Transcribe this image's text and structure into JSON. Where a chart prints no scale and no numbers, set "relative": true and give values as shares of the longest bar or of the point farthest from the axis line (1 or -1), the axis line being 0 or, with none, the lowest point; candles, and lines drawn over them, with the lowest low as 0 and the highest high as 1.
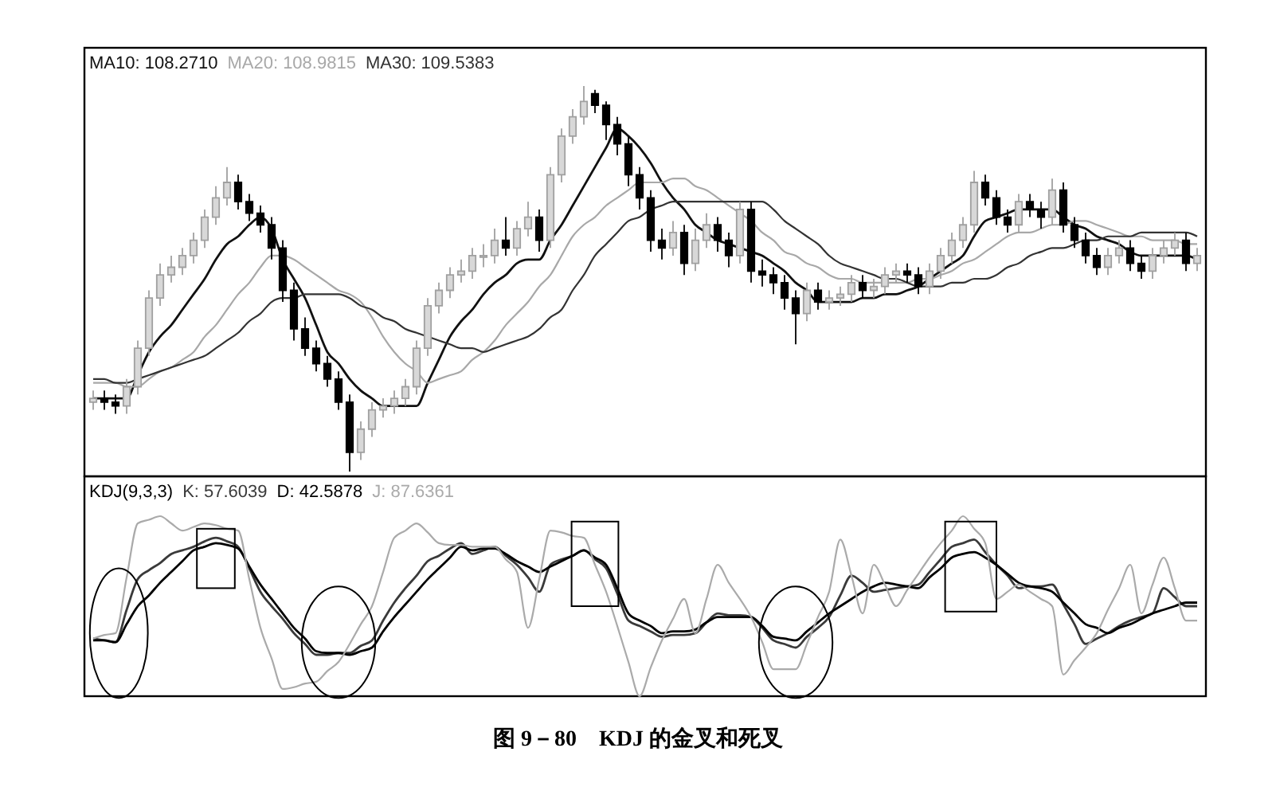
{
  "chart_data": [
    {
      "type": "candlestick",
      "relative": true,
      "categories": [
        null,
        null,
        null,
        null,
        null,
        null,
        null,
        null,
        null,
        null,
        null,
        null,
        null,
        null,
        null,
        null,
        null,
        null,
        null,
        null,
        null,
        null,
        null,
        null,
        null,
        null,
        null,
        null,
        null,
        null,
        null,
        null,
        null,
        null,
        null,
        null,
        null,
        null,
        null,
        null,
        null,
        null,
        null,
        null,
        null,
        null,
        null,
        null,
        null,
        null,
        null,
        null,
        null,
        null,
        null,
        null,
        null,
        null,
        null,
        null,
        null,
        null,
        null,
        null,
        null,
        null,
        null,
        null,
        null,
        null,
        null,
        null,
        null,
        null,
        null,
        null,
        null,
        null,
        null,
        null,
        null,
        null,
        null,
        null,
        null,
        null,
        null,
        null,
        null,
        null,
        null,
        null,
        null,
        null,
        null,
        null,
        null,
        null,
        null,
        null
      ],
      "ohlc": [
        [
          0.18,
          0.21,
          0.16,
          0.19
        ],
        [
          0.19,
          0.21,
          0.16,
          0.18
        ],
        [
          0.18,
          0.2,
          0.15,
          0.17
        ],
        [
          0.17,
          0.24,
          0.15,
          0.22
        ],
        [
          0.22,
          0.34,
          0.2,
          0.32
        ],
        [
          0.32,
          0.47,
          0.3,
          0.45
        ],
        [
          0.45,
          0.54,
          0.43,
          0.51
        ],
        [
          0.51,
          0.56,
          0.49,
          0.53
        ],
        [
          0.53,
          0.58,
          0.51,
          0.56
        ],
        [
          0.56,
          0.62,
          0.54,
          0.6
        ],
        [
          0.6,
          0.68,
          0.58,
          0.66
        ],
        [
          0.66,
          0.74,
          0.64,
          0.71
        ],
        [
          0.71,
          0.79,
          0.69,
          0.75
        ],
        [
          0.75,
          0.77,
          0.68,
          0.7
        ],
        [
          0.7,
          0.72,
          0.65,
          0.67
        ],
        [
          0.67,
          0.69,
          0.62,
          0.64
        ],
        [
          0.64,
          0.66,
          0.55,
          0.58
        ],
        [
          0.58,
          0.6,
          0.44,
          0.47
        ],
        [
          0.47,
          0.49,
          0.34,
          0.37
        ],
        [
          0.37,
          0.4,
          0.3,
          0.32
        ],
        [
          0.32,
          0.34,
          0.26,
          0.28
        ],
        [
          0.28,
          0.3,
          0.22,
          0.24
        ],
        [
          0.24,
          0.26,
          0.16,
          0.18
        ],
        [
          0.18,
          0.2,
          0.0,
          0.05
        ],
        [
          0.05,
          0.13,
          0.03,
          0.11
        ],
        [
          0.11,
          0.18,
          0.09,
          0.16
        ],
        [
          0.16,
          0.19,
          0.14,
          0.17
        ],
        [
          0.17,
          0.21,
          0.15,
          0.19
        ],
        [
          0.19,
          0.24,
          0.17,
          0.22
        ],
        [
          0.22,
          0.34,
          0.2,
          0.32
        ],
        [
          0.32,
          0.45,
          0.3,
          0.43
        ],
        [
          0.43,
          0.49,
          0.41,
          0.47
        ],
        [
          0.47,
          0.53,
          0.45,
          0.51
        ],
        [
          0.51,
          0.55,
          0.49,
          0.52
        ],
        [
          0.52,
          0.58,
          0.5,
          0.56
        ],
        [
          0.56,
          0.59,
          0.53,
          0.56
        ],
        [
          0.56,
          0.63,
          0.54,
          0.6
        ],
        [
          0.6,
          0.66,
          0.56,
          0.58
        ],
        [
          0.58,
          0.65,
          0.56,
          0.63
        ],
        [
          0.63,
          0.7,
          0.61,
          0.66
        ],
        [
          0.66,
          0.68,
          0.57,
          0.6
        ],
        [
          0.6,
          0.79,
          0.58,
          0.77
        ],
        [
          0.77,
          0.89,
          0.75,
          0.87
        ],
        [
          0.87,
          0.94,
          0.85,
          0.92
        ],
        [
          0.92,
          1.0,
          0.9,
          0.96
        ],
        [
          0.98,
          0.99,
          0.93,
          0.95
        ],
        [
          0.95,
          0.96,
          0.86,
          0.9
        ],
        [
          0.9,
          0.92,
          0.82,
          0.85
        ],
        [
          0.85,
          0.87,
          0.74,
          0.77
        ],
        [
          0.77,
          0.79,
          0.68,
          0.71
        ],
        [
          0.71,
          0.73,
          0.57,
          0.6
        ],
        [
          0.6,
          0.63,
          0.55,
          0.58
        ],
        [
          0.58,
          0.65,
          0.56,
          0.62
        ],
        [
          0.62,
          0.64,
          0.51,
          0.54
        ],
        [
          0.54,
          0.63,
          0.52,
          0.6
        ],
        [
          0.6,
          0.67,
          0.58,
          0.64
        ],
        [
          0.64,
          0.66,
          0.57,
          0.6
        ],
        [
          0.6,
          0.62,
          0.53,
          0.56
        ],
        [
          0.56,
          0.7,
          0.54,
          0.68
        ],
        [
          0.68,
          0.7,
          0.49,
          0.52
        ],
        [
          0.52,
          0.55,
          0.48,
          0.51
        ],
        [
          0.51,
          0.53,
          0.46,
          0.49
        ],
        [
          0.49,
          0.51,
          0.42,
          0.45
        ],
        [
          0.45,
          0.47,
          0.33,
          0.41
        ],
        [
          0.41,
          0.49,
          0.39,
          0.47
        ],
        [
          0.47,
          0.49,
          0.42,
          0.44
        ],
        [
          0.44,
          0.47,
          0.42,
          0.45
        ],
        [
          0.45,
          0.48,
          0.43,
          0.46
        ],
        [
          0.46,
          0.51,
          0.44,
          0.49
        ],
        [
          0.49,
          0.51,
          0.45,
          0.47
        ],
        [
          0.47,
          0.5,
          0.45,
          0.48
        ],
        [
          0.48,
          0.53,
          0.46,
          0.51
        ],
        [
          0.51,
          0.54,
          0.49,
          0.52
        ],
        [
          0.52,
          0.54,
          0.49,
          0.51
        ],
        [
          0.51,
          0.53,
          0.46,
          0.48
        ],
        [
          0.48,
          0.54,
          0.46,
          0.52
        ],
        [
          0.52,
          0.58,
          0.5,
          0.56
        ],
        [
          0.56,
          0.62,
          0.54,
          0.6
        ],
        [
          0.6,
          0.66,
          0.58,
          0.64
        ],
        [
          0.64,
          0.78,
          0.62,
          0.75
        ],
        [
          0.75,
          0.77,
          0.69,
          0.71
        ],
        [
          0.71,
          0.73,
          0.64,
          0.66
        ],
        [
          0.66,
          0.68,
          0.62,
          0.64
        ],
        [
          0.64,
          0.72,
          0.62,
          0.7
        ],
        [
          0.7,
          0.72,
          0.66,
          0.68
        ],
        [
          0.68,
          0.7,
          0.63,
          0.66
        ],
        [
          0.66,
          0.76,
          0.64,
          0.73
        ],
        [
          0.73,
          0.75,
          0.62,
          0.64
        ],
        [
          0.64,
          0.66,
          0.58,
          0.6
        ],
        [
          0.6,
          0.62,
          0.54,
          0.56
        ],
        [
          0.56,
          0.58,
          0.51,
          0.53
        ],
        [
          0.53,
          0.58,
          0.51,
          0.56
        ],
        [
          0.56,
          0.6,
          0.54,
          0.58
        ],
        [
          0.58,
          0.6,
          0.52,
          0.54
        ],
        [
          0.54,
          0.56,
          0.5,
          0.52
        ],
        [
          0.52,
          0.58,
          0.5,
          0.56
        ],
        [
          0.56,
          0.6,
          0.54,
          0.58
        ],
        [
          0.58,
          0.62,
          0.56,
          0.6
        ],
        [
          0.6,
          0.62,
          0.52,
          0.54
        ],
        [
          0.54,
          0.58,
          0.52,
          0.56
        ]
      ],
      "series": [
        {
          "type": "line",
          "name": "MA10: 108.2710",
          "color": "#111111",
          "values": [
            0.19,
            0.19,
            0.19,
            0.19,
            0.25,
            0.31,
            0.35,
            0.38,
            0.42,
            0.46,
            0.5,
            0.55,
            0.59,
            0.61,
            0.64,
            0.66,
            0.63,
            0.55,
            0.5,
            0.45,
            0.38,
            0.31,
            0.28,
            0.24,
            0.21,
            0.19,
            0.17,
            0.17,
            0.17,
            0.17,
            0.23,
            0.29,
            0.35,
            0.39,
            0.42,
            0.46,
            0.49,
            0.51,
            0.54,
            0.55,
            0.55,
            0.6,
            0.64,
            0.69,
            0.74,
            0.79,
            0.84,
            0.89,
            0.87,
            0.84,
            0.8,
            0.75,
            0.71,
            0.68,
            0.64,
            0.62,
            0.6,
            0.59,
            0.58,
            0.57,
            0.56,
            0.54,
            0.52,
            0.49,
            0.47,
            0.44,
            0.44,
            0.44,
            0.44,
            0.45,
            0.45,
            0.46,
            0.46,
            0.47,
            0.48,
            0.5,
            0.52,
            0.54,
            0.56,
            0.61,
            0.65,
            0.66,
            0.67,
            0.68,
            0.68,
            0.68,
            0.68,
            0.66,
            0.64,
            0.63,
            0.61,
            0.6,
            0.59,
            0.57,
            0.56,
            0.56,
            0.56,
            0.56,
            0.56,
            0.55
          ]
        },
        {
          "type": "line",
          "name": "MA20: 108.9815",
          "color": "#a8a8a8",
          "values": [
            0.23,
            0.23,
            0.23,
            0.22,
            0.22,
            0.24,
            0.26,
            0.27,
            0.29,
            0.31,
            0.35,
            0.38,
            0.42,
            0.46,
            0.49,
            0.53,
            0.56,
            0.56,
            0.55,
            0.53,
            0.51,
            0.49,
            0.47,
            0.46,
            0.44,
            0.4,
            0.35,
            0.31,
            0.28,
            0.26,
            0.23,
            0.24,
            0.25,
            0.26,
            0.29,
            0.31,
            0.34,
            0.38,
            0.41,
            0.44,
            0.48,
            0.51,
            0.56,
            0.61,
            0.64,
            0.66,
            0.69,
            0.71,
            0.73,
            0.75,
            0.75,
            0.75,
            0.76,
            0.76,
            0.74,
            0.73,
            0.71,
            0.69,
            0.67,
            0.65,
            0.62,
            0.6,
            0.57,
            0.56,
            0.54,
            0.53,
            0.51,
            0.5,
            0.5,
            0.49,
            0.49,
            0.49,
            0.49,
            0.49,
            0.5,
            0.5,
            0.51,
            0.52,
            0.54,
            0.55,
            0.57,
            0.59,
            0.61,
            0.62,
            0.62,
            0.63,
            0.64,
            0.64,
            0.65,
            0.65,
            0.64,
            0.63,
            0.62,
            0.61,
            0.61,
            0.6,
            0.6,
            0.6,
            0.59,
            0.59
          ]
        },
        {
          "type": "line",
          "name": "MA30: 109.5383",
          "color": "#333333",
          "values": [
            0.24,
            0.24,
            0.23,
            0.23,
            0.24,
            0.25,
            0.26,
            0.27,
            0.28,
            0.29,
            0.3,
            0.32,
            0.34,
            0.36,
            0.39,
            0.41,
            0.44,
            0.45,
            0.45,
            0.46,
            0.46,
            0.46,
            0.46,
            0.45,
            0.43,
            0.42,
            0.4,
            0.39,
            0.37,
            0.36,
            0.35,
            0.34,
            0.33,
            0.32,
            0.32,
            0.31,
            0.32,
            0.33,
            0.34,
            0.35,
            0.37,
            0.4,
            0.42,
            0.47,
            0.51,
            0.56,
            0.59,
            0.62,
            0.65,
            0.66,
            0.68,
            0.69,
            0.7,
            0.7,
            0.7,
            0.7,
            0.7,
            0.7,
            0.7,
            0.7,
            0.7,
            0.68,
            0.65,
            0.63,
            0.61,
            0.59,
            0.56,
            0.54,
            0.53,
            0.52,
            0.51,
            0.5,
            0.5,
            0.49,
            0.48,
            0.48,
            0.48,
            0.49,
            0.49,
            0.5,
            0.5,
            0.51,
            0.53,
            0.54,
            0.56,
            0.57,
            0.58,
            0.58,
            0.59,
            0.6,
            0.6,
            0.61,
            0.61,
            0.61,
            0.62,
            0.62,
            0.62,
            0.62,
            0.62,
            0.61
          ]
        }
      ]
    },
    {
      "type": "line",
      "title": "KDJ(9,3,3)",
      "relative": true,
      "categories": [
        null,
        null,
        null,
        null,
        null,
        null,
        null,
        null,
        null,
        null,
        null,
        null,
        null,
        null,
        null,
        null,
        null,
        null,
        null,
        null,
        null,
        null,
        null,
        null,
        null,
        null,
        null,
        null,
        null,
        null,
        null,
        null,
        null,
        null,
        null,
        null,
        null,
        null,
        null,
        null,
        null,
        null,
        null,
        null,
        null,
        null,
        null,
        null,
        null,
        null,
        null,
        null,
        null,
        null,
        null,
        null,
        null,
        null,
        null,
        null,
        null,
        null,
        null,
        null,
        null,
        null,
        null,
        null,
        null,
        null,
        null,
        null,
        null,
        null,
        null,
        null,
        null,
        null,
        null,
        null,
        null,
        null,
        null,
        null,
        null,
        null,
        null,
        null,
        null,
        null,
        null,
        null,
        null,
        null,
        null,
        null,
        null,
        null,
        null,
        null
      ],
      "annotations": [
        "图 9－80　KDJ 的金叉和死叉"
      ],
      "series": [
        {
          "name": "K: 57.6039",
          "color": "#3a3a3a",
          "values": [
            0.32,
            0.31,
            0.3,
            0.48,
            0.65,
            0.7,
            0.74,
            0.79,
            0.81,
            0.83,
            0.86,
            0.88,
            0.86,
            0.83,
            0.71,
            0.58,
            0.5,
            0.43,
            0.35,
            0.29,
            0.23,
            0.23,
            0.24,
            0.24,
            0.28,
            0.31,
            0.42,
            0.52,
            0.6,
            0.67,
            0.75,
            0.78,
            0.82,
            0.85,
            0.79,
            0.81,
            0.83,
            0.78,
            0.73,
            0.66,
            0.58,
            0.73,
            0.76,
            0.78,
            0.81,
            0.76,
            0.71,
            0.57,
            0.42,
            0.39,
            0.36,
            0.33,
            0.34,
            0.34,
            0.35,
            0.41,
            0.46,
            0.45,
            0.45,
            0.44,
            0.38,
            0.31,
            0.29,
            0.27,
            0.33,
            0.38,
            0.44,
            0.56,
            0.67,
            0.63,
            0.58,
            0.59,
            0.6,
            0.61,
            0.62,
            0.69,
            0.76,
            0.83,
            0.85,
            0.87,
            0.8,
            0.73,
            0.67,
            0.6,
            0.61,
            0.61,
            0.62,
            0.51,
            0.4,
            0.29,
            0.32,
            0.35,
            0.39,
            0.42,
            0.44,
            0.46,
            0.6,
            0.55,
            0.5,
            0.5
          ]
        },
        {
          "name": "D: 42.5878",
          "color": "#000000",
          "values": [
            0.31,
            0.31,
            0.3,
            0.4,
            0.5,
            0.56,
            0.63,
            0.69,
            0.75,
            0.81,
            0.83,
            0.85,
            0.84,
            0.82,
            0.72,
            0.62,
            0.54,
            0.46,
            0.38,
            0.32,
            0.25,
            0.24,
            0.24,
            0.23,
            0.25,
            0.27,
            0.36,
            0.44,
            0.51,
            0.58,
            0.65,
            0.71,
            0.77,
            0.83,
            0.81,
            0.82,
            0.82,
            0.79,
            0.75,
            0.72,
            0.69,
            0.72,
            0.75,
            0.78,
            0.81,
            0.77,
            0.73,
            0.6,
            0.46,
            0.42,
            0.39,
            0.35,
            0.36,
            0.36,
            0.37,
            0.41,
            0.44,
            0.44,
            0.44,
            0.44,
            0.39,
            0.33,
            0.32,
            0.31,
            0.36,
            0.41,
            0.46,
            0.5,
            0.54,
            0.58,
            0.61,
            0.63,
            0.62,
            0.61,
            0.6,
            0.66,
            0.71,
            0.77,
            0.79,
            0.8,
            0.77,
            0.73,
            0.68,
            0.63,
            0.61,
            0.6,
            0.58,
            0.52,
            0.46,
            0.4,
            0.38,
            0.35,
            0.38,
            0.4,
            0.43,
            0.46,
            0.48,
            0.5,
            0.52,
            0.52
          ]
        },
        {
          "name": "J: 87.6361",
          "color": "#aaaaaa",
          "values": [
            0.32,
            0.34,
            0.35,
            0.66,
            0.96,
            0.98,
            1.0,
            0.96,
            0.92,
            0.94,
            0.96,
            0.95,
            0.93,
            0.92,
            0.65,
            0.38,
            0.21,
            0.04,
            0.05,
            0.07,
            0.08,
            0.14,
            0.19,
            0.29,
            0.4,
            0.5,
            0.69,
            0.88,
            0.92,
            0.96,
            0.91,
            0.85,
            0.84,
            0.84,
            0.83,
            0.83,
            0.83,
            0.76,
            0.69,
            0.38,
            0.65,
            0.92,
            0.91,
            0.89,
            0.88,
            0.73,
            0.58,
            0.39,
            0.19,
            0.0,
            0.16,
            0.31,
            0.43,
            0.54,
            0.35,
            0.54,
            0.73,
            0.63,
            0.54,
            0.44,
            0.3,
            0.15,
            0.15,
            0.15,
            0.29,
            0.44,
            0.58,
            0.87,
            0.67,
            0.46,
            0.73,
            0.62,
            0.5,
            0.59,
            0.68,
            0.77,
            0.85,
            0.92,
            1.0,
            0.93,
            0.85,
            0.54,
            0.58,
            0.62,
            0.58,
            0.54,
            0.5,
            0.12,
            0.2,
            0.27,
            0.35,
            0.48,
            0.6,
            0.73,
            0.46,
            0.62,
            0.77,
            0.6,
            0.42,
            0.42
          ]
        }
      ]
    }
  ]
}
